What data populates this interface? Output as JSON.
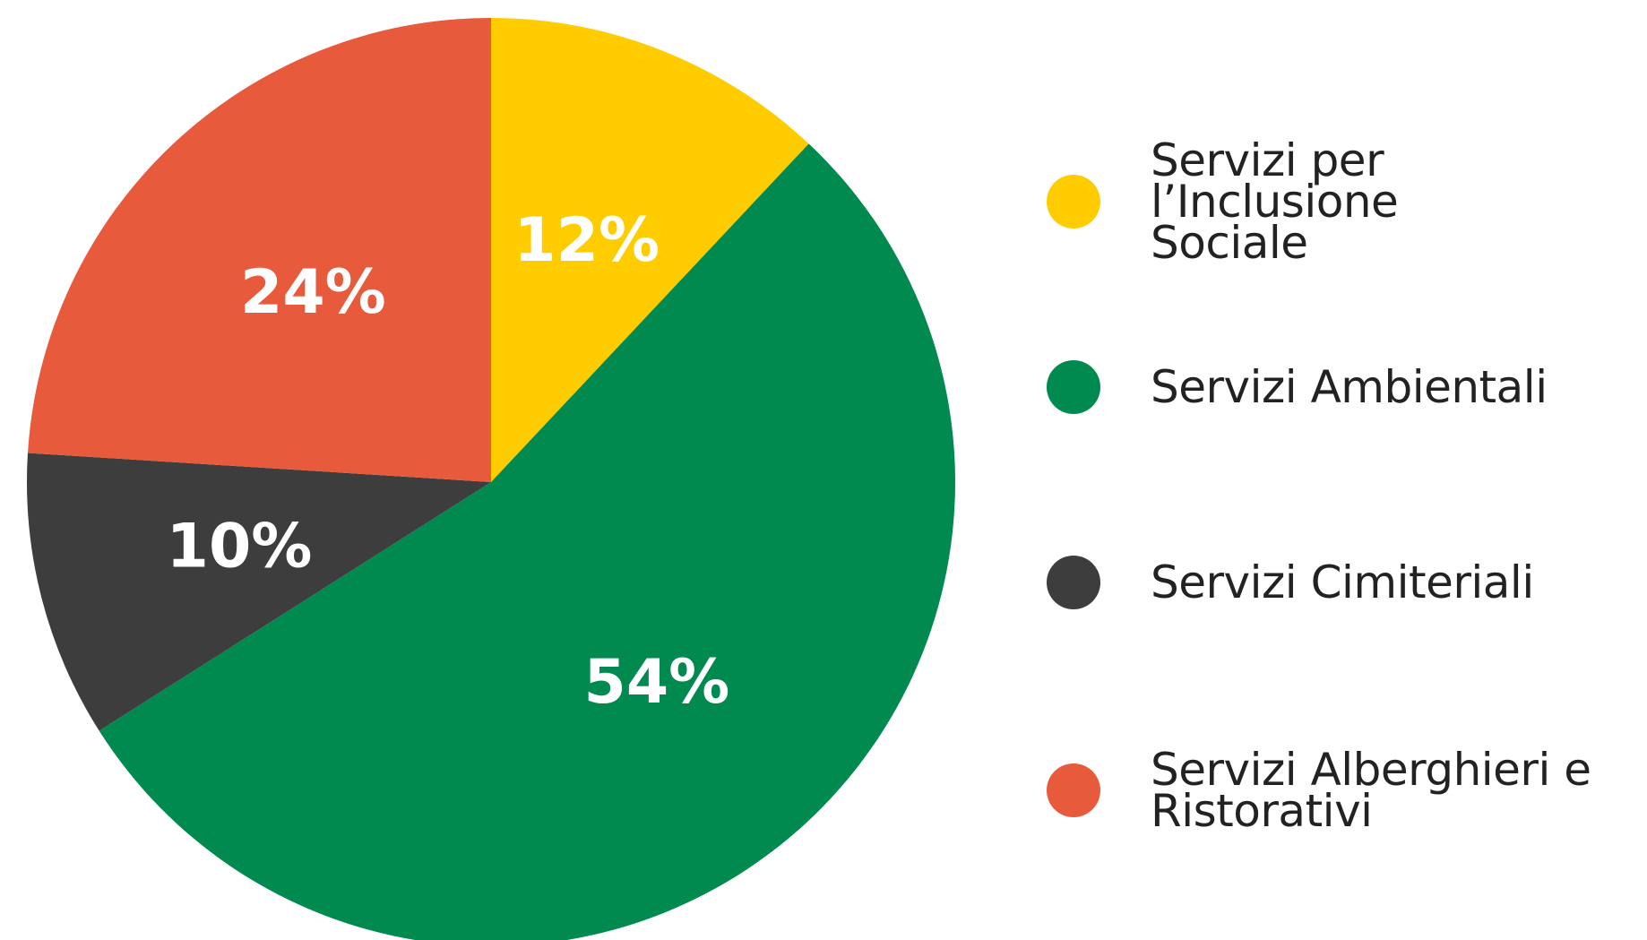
{
  "chart_data": {
    "type": "pie",
    "title": "",
    "slices": [
      {
        "label": "Servizi per l’Inclusione Sociale",
        "value": 12,
        "display": "12%",
        "color": "#FFCC00"
      },
      {
        "label": "Servizi Ambientali",
        "value": 54,
        "display": "54%",
        "color": "#008A4F"
      },
      {
        "label": "Servizi Cimiteriali",
        "value": 10,
        "display": "10%",
        "color": "#3D3D3D"
      },
      {
        "label": "Servizi Alberghieri e Ristorativi",
        "value": 24,
        "display": "24%",
        "color": "#E85A3C"
      }
    ],
    "start_angle_deg": 0,
    "direction": "clockwise",
    "legend_position": "right"
  },
  "legend": {
    "items": [
      {
        "label": "Servizi per l’Inclusione\nSociale",
        "color": "#FFCC00"
      },
      {
        "label": "Servizi Ambientali",
        "color": "#008A4F"
      },
      {
        "label": "Servizi Cimiteriali",
        "color": "#3D3D3D"
      },
      {
        "label": "Servizi Alberghieri e\nRistorativi",
        "color": "#E85A3C"
      }
    ]
  }
}
